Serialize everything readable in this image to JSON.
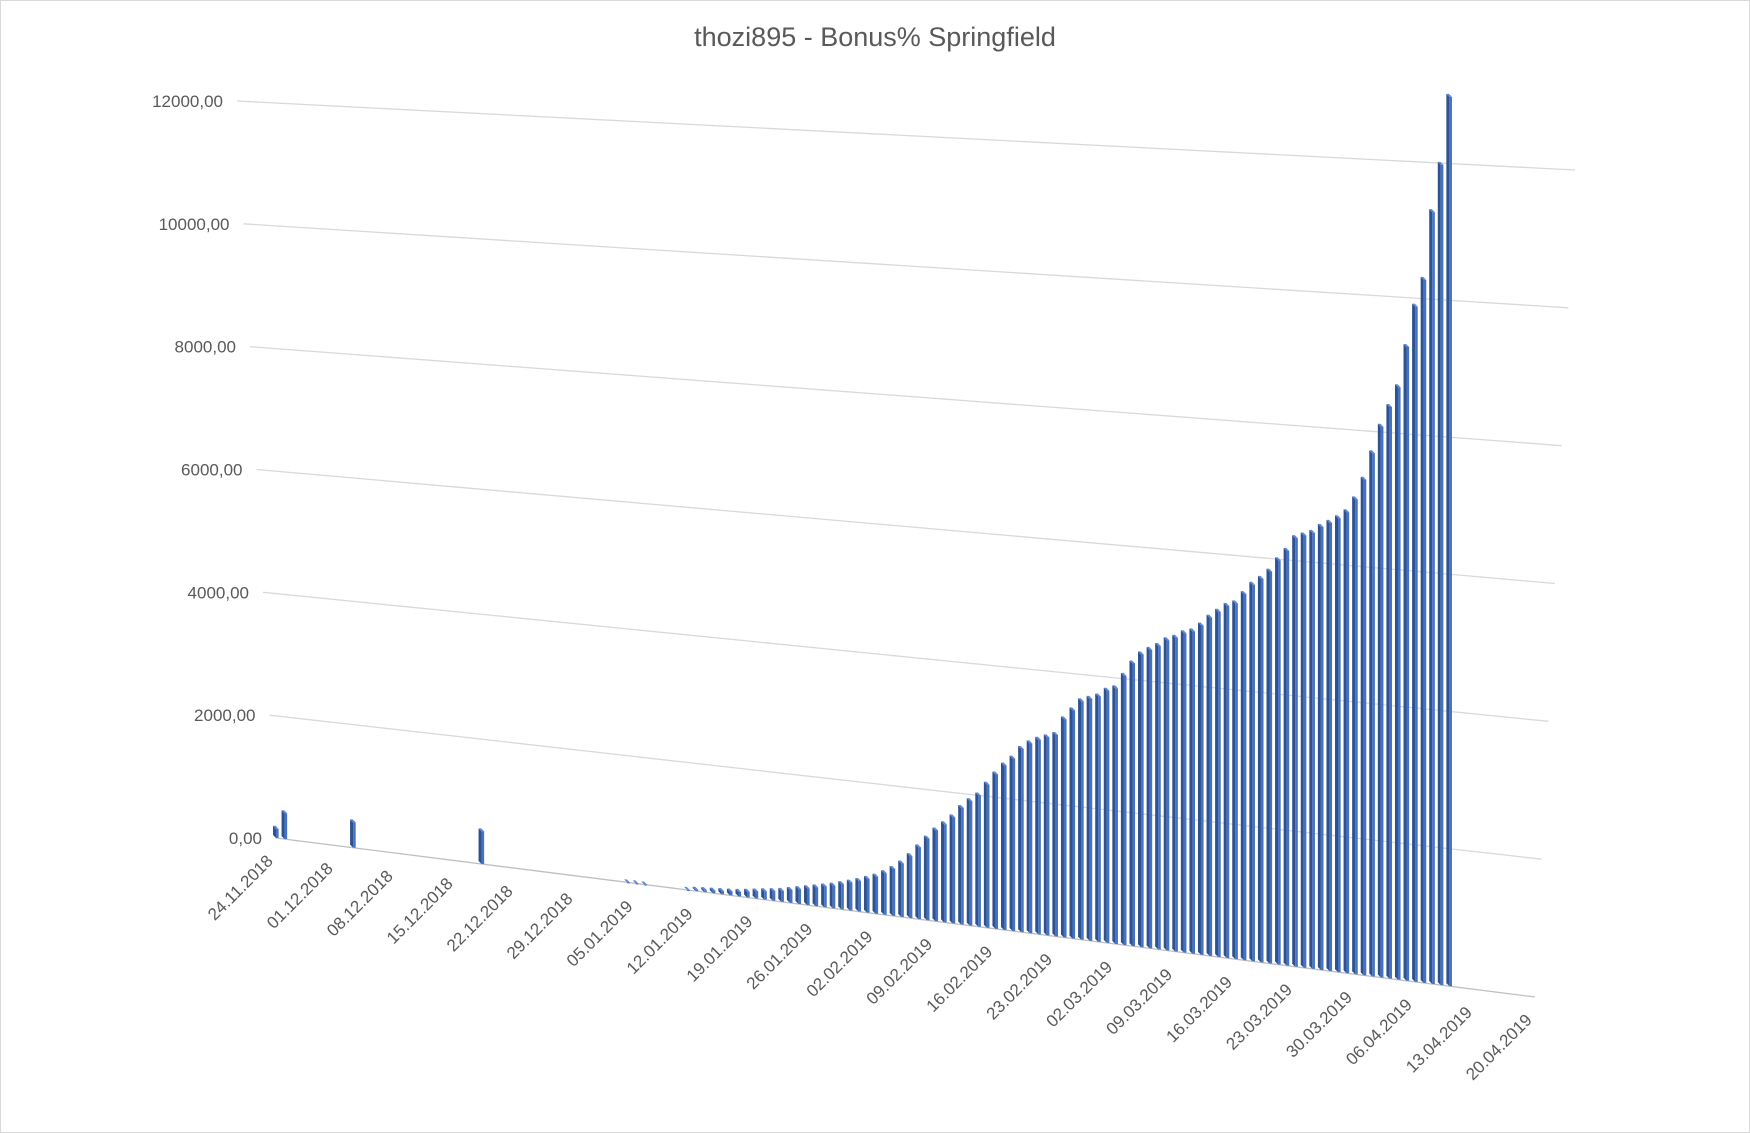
{
  "chart_data": {
    "type": "bar",
    "title": "thozi895 - Bonus% Springfield",
    "xlabel": "",
    "ylabel": "",
    "ylim": [
      0,
      12000
    ],
    "yticks": [
      "0,00",
      "2000,00",
      "4000,00",
      "6000,00",
      "8000,00",
      "10000,00",
      "12000,00"
    ],
    "xticks": [
      "24.11.2018",
      "01.12.2018",
      "08.12.2018",
      "15.12.2018",
      "22.12.2018",
      "29.12.2018",
      "05.01.2019",
      "12.01.2019",
      "19.01.2019",
      "26.01.2019",
      "02.02.2019",
      "09.02.2019",
      "16.02.2019",
      "23.02.2019",
      "02.03.2019",
      "09.03.2019",
      "16.03.2019",
      "23.03.2019",
      "30.03.2019",
      "06.04.2019",
      "13.04.2019",
      "20.04.2019"
    ],
    "grid": true,
    "legend": "none",
    "bar_color": "#4472c4",
    "x": [
      "24.11.2018",
      "25.11.2018",
      "03.12.2018",
      "18.12.2018",
      "04.01.2019",
      "05.01.2019",
      "06.01.2019",
      "11.01.2019",
      "12.01.2019",
      "13.01.2019",
      "14.01.2019",
      "15.01.2019",
      "16.01.2019",
      "17.01.2019",
      "18.01.2019",
      "19.01.2019",
      "20.01.2019",
      "21.01.2019",
      "22.01.2019",
      "23.01.2019",
      "24.01.2019",
      "25.01.2019",
      "26.01.2019",
      "27.01.2019",
      "28.01.2019",
      "29.01.2019",
      "30.01.2019",
      "31.01.2019",
      "01.02.2019",
      "02.02.2019",
      "03.02.2019",
      "04.02.2019",
      "05.02.2019",
      "06.02.2019",
      "07.02.2019",
      "08.02.2019",
      "09.02.2019",
      "10.02.2019",
      "11.02.2019",
      "12.02.2019",
      "13.02.2019",
      "14.02.2019",
      "15.02.2019",
      "16.02.2019",
      "17.02.2019",
      "18.02.2019",
      "19.02.2019",
      "20.02.2019",
      "21.02.2019",
      "22.02.2019",
      "23.02.2019",
      "24.02.2019",
      "25.02.2019",
      "26.02.2019",
      "27.02.2019",
      "28.02.2019",
      "01.03.2019",
      "02.03.2019",
      "03.03.2019",
      "04.03.2019",
      "05.03.2019",
      "06.03.2019",
      "07.03.2019",
      "08.03.2019",
      "09.03.2019",
      "10.03.2019",
      "11.03.2019",
      "12.03.2019",
      "13.03.2019",
      "14.03.2019",
      "15.03.2019",
      "16.03.2019",
      "17.03.2019",
      "18.03.2019",
      "19.03.2019",
      "20.03.2019",
      "21.03.2019",
      "22.03.2019",
      "23.03.2019",
      "24.03.2019",
      "25.03.2019",
      "26.03.2019",
      "27.03.2019",
      "28.03.2019",
      "29.03.2019",
      "30.03.2019",
      "31.03.2019",
      "01.04.2019",
      "02.04.2019",
      "03.04.2019",
      "04.04.2019",
      "05.04.2019",
      "06.04.2019",
      "07.04.2019",
      "08.04.2019",
      "09.04.2019",
      "10.04.2019"
    ],
    "values": [
      150,
      420,
      410,
      520,
      0,
      0,
      0,
      0,
      20,
      30,
      40,
      50,
      60,
      70,
      90,
      110,
      130,
      150,
      170,
      200,
      230,
      260,
      290,
      320,
      350,
      390,
      430,
      470,
      520,
      570,
      640,
      720,
      820,
      950,
      1100,
      1250,
      1390,
      1500,
      1620,
      1780,
      1900,
      2000,
      2180,
      2350,
      2500,
      2620,
      2780,
      2880,
      2950,
      3000,
      3050,
      3300,
      3450,
      3600,
      3650,
      3700,
      3800,
      3850,
      4050,
      4250,
      4400,
      4480,
      4550,
      4650,
      4700,
      4780,
      4820,
      4920,
      5050,
      5150,
      5250,
      5300,
      5450,
      5600,
      5700,
      5820,
      6000,
      6150,
      6350,
      6400,
      6450,
      6550,
      6620,
      6700,
      6800,
      7000,
      7300,
      7700,
      8100,
      8400,
      8700,
      9300,
      9900,
      10300,
      11300,
      12000,
      13000
    ]
  }
}
